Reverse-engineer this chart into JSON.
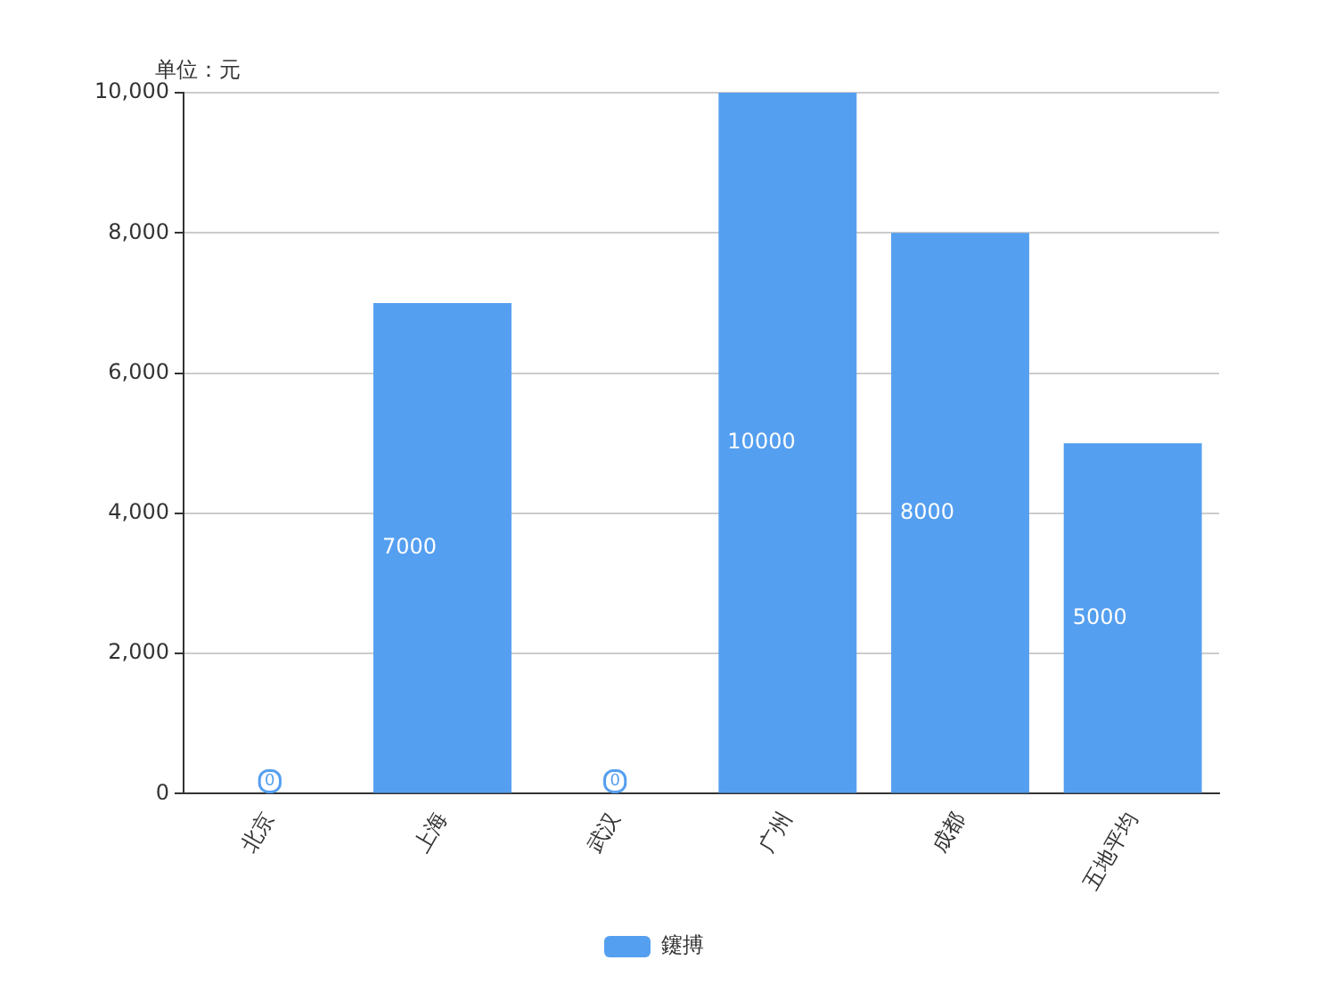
{
  "chart_data": {
    "type": "bar",
    "ylabel": "单位：元",
    "categories": [
      "北京",
      "上海",
      "武汉",
      "广州",
      "成都",
      "五地平均"
    ],
    "series": [
      {
        "name": "鑳搏",
        "color": "#559ff0",
        "values": [
          0,
          7000,
          0,
          10000,
          8000,
          5000
        ]
      }
    ],
    "ylim": [
      0,
      10000
    ],
    "yticks": [
      {
        "value": 0,
        "label": "0"
      },
      {
        "value": 2000,
        "label": "2,000"
      },
      {
        "value": 4000,
        "label": "4,000"
      },
      {
        "value": 6000,
        "label": "6,000"
      },
      {
        "value": 8000,
        "label": "8,000"
      },
      {
        "value": 10000,
        "label": "10,000"
      }
    ],
    "grid": "y",
    "legend": "bottom",
    "data_labels": true
  }
}
